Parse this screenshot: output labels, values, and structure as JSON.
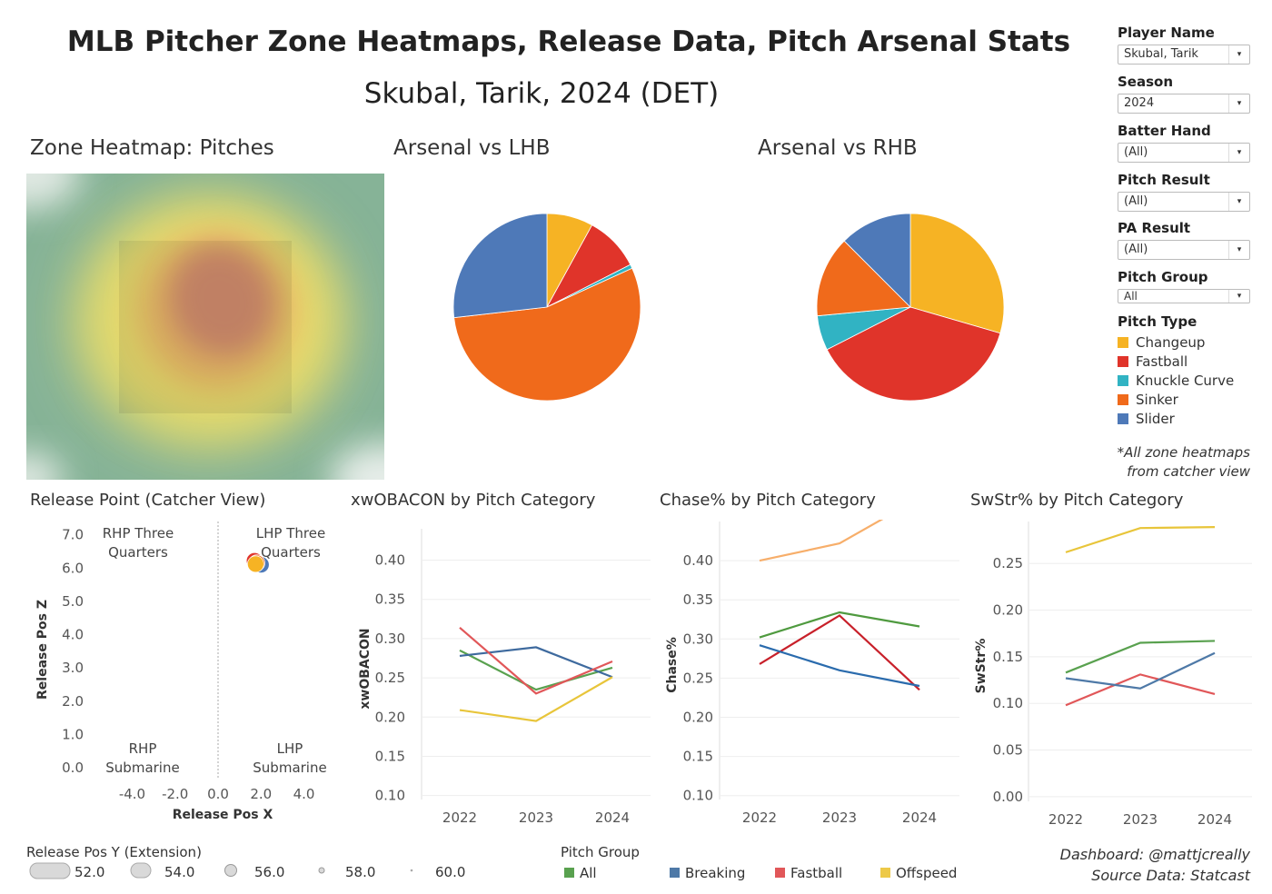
{
  "header": {
    "title": "MLB Pitcher Zone Heatmaps, Release Data, Pitch Arsenal Stats",
    "subtitle": "Skubal, Tarik, 2024 (DET)"
  },
  "filters": [
    {
      "label": "Player Name",
      "value": "Skubal, Tarik"
    },
    {
      "label": "Season",
      "value": "2024"
    },
    {
      "label": "Batter Hand",
      "value": "(All)"
    },
    {
      "label": "Pitch Result",
      "value": "(All)"
    },
    {
      "label": "PA Result",
      "value": "(All)"
    },
    {
      "label": "Pitch Group",
      "value": "All"
    }
  ],
  "pitch_type_legend": {
    "title": "Pitch Type",
    "items": [
      {
        "name": "Changeup",
        "color": "#f6b324"
      },
      {
        "name": "Fastball",
        "color": "#e0342a"
      },
      {
        "name": "Knuckle Curve",
        "color": "#31b3c3"
      },
      {
        "name": "Sinker",
        "color": "#f06a1b"
      },
      {
        "name": "Slider",
        "color": "#4e79b8"
      }
    ]
  },
  "notes": {
    "catcher_line1": "*All zone heatmaps",
    "catcher_line2": "from catcher view",
    "credit_line1": "Dashboard: @mattjcreally",
    "credit_line2": "Source Data: Statcast"
  },
  "heatmap": {
    "title": "Zone Heatmap: Pitches"
  },
  "chart_data": [
    {
      "type": "pie",
      "title": "Arsenal vs LHB",
      "slices": [
        {
          "label": "Changeup",
          "value": 8,
          "color": "#f6b324"
        },
        {
          "label": "Fastball",
          "value": 9.5,
          "color": "#e0342a"
        },
        {
          "label": "Knuckle Curve",
          "value": 0.7,
          "color": "#31b3c3"
        },
        {
          "label": "Sinker",
          "value": 55,
          "color": "#f06a1b"
        },
        {
          "label": "Slider",
          "value": 26.8,
          "color": "#4e79b8"
        }
      ]
    },
    {
      "type": "pie",
      "title": "Arsenal vs RHB",
      "slices": [
        {
          "label": "Changeup",
          "value": 29.5,
          "color": "#f6b324"
        },
        {
          "label": "Fastball",
          "value": 38,
          "color": "#e0342a"
        },
        {
          "label": "Knuckle Curve",
          "value": 6,
          "color": "#31b3c3"
        },
        {
          "label": "Sinker",
          "value": 14,
          "color": "#f06a1b"
        },
        {
          "label": "Slider",
          "value": 12.5,
          "color": "#4e79b8"
        }
      ]
    },
    {
      "type": "scatter",
      "title": "Release Point (Catcher View)",
      "xlabel": "Release Pos X",
      "ylabel": "Release Pos Z",
      "xlim": [
        -5.5,
        5.5
      ],
      "ylim": [
        -0.3,
        7.4
      ],
      "xticks": [
        "-4.0",
        "-2.0",
        "0.0",
        "2.0",
        "4.0"
      ],
      "yticks": [
        "0.0",
        "1.0",
        "2.0",
        "3.0",
        "4.0",
        "5.0",
        "6.0",
        "7.0"
      ],
      "quadrant_labels": [
        {
          "line1": "RHP Three",
          "line2": "Quarters"
        },
        {
          "line1": "LHP Three",
          "line2": "Quarters"
        },
        {
          "line1": "RHP",
          "line2": "Submarine"
        },
        {
          "line1": "LHP",
          "line2": "Submarine"
        }
      ],
      "points": [
        {
          "x": 2.0,
          "z": 6.1,
          "type": "Slider",
          "color": "#4e79b8"
        },
        {
          "x": 1.7,
          "z": 6.22,
          "type": "Fastball",
          "color": "#e0342a"
        },
        {
          "x": 1.8,
          "z": 6.15,
          "type": "Sinker",
          "color": "#f06a1b"
        },
        {
          "x": 1.75,
          "z": 6.12,
          "type": "Changeup",
          "color": "#f6b324"
        }
      ]
    },
    {
      "type": "line",
      "title": "xwOBACON by Pitch Category",
      "ylabel": "xwOBACON",
      "x": [
        "2022",
        "2023",
        "2024"
      ],
      "ylim": [
        0.095,
        0.44
      ],
      "yticks": [
        "0.10",
        "0.15",
        "0.20",
        "0.25",
        "0.30",
        "0.35",
        "0.40"
      ],
      "series": [
        {
          "name": "All",
          "color": "#59a14f",
          "values": [
            0.285,
            0.235,
            0.263
          ]
        },
        {
          "name": "Breaking",
          "color": "#3e6a9e",
          "values": [
            0.278,
            0.289,
            0.251
          ]
        },
        {
          "name": "Fastball",
          "color": "#e15759",
          "values": [
            0.314,
            0.23,
            0.271
          ]
        },
        {
          "name": "Offspeed",
          "color": "#e8c53a",
          "values": [
            0.209,
            0.195,
            0.251
          ]
        }
      ]
    },
    {
      "type": "line",
      "title": "Chase% by Pitch Category",
      "ylabel": "Chase%",
      "x": [
        "2022",
        "2023",
        "2024"
      ],
      "ylim": [
        0.095,
        0.45
      ],
      "yticks": [
        "0.10",
        "0.15",
        "0.20",
        "0.25",
        "0.30",
        "0.35",
        "0.40"
      ],
      "series": [
        {
          "name": "Offspeed",
          "color": "#f7ae6a",
          "values": [
            0.4,
            0.422,
            0.48
          ]
        },
        {
          "name": "All",
          "color": "#4f9a3f",
          "values": [
            0.302,
            0.334,
            0.316
          ]
        },
        {
          "name": "Fastball",
          "color": "#c8202a",
          "values": [
            0.268,
            0.33,
            0.235
          ]
        },
        {
          "name": "Breaking",
          "color": "#2a6bad",
          "values": [
            0.292,
            0.26,
            0.24
          ]
        }
      ]
    },
    {
      "type": "line",
      "title": "SwStr% by Pitch Category",
      "ylabel": "SwStr%",
      "x": [
        "2022",
        "2023",
        "2024"
      ],
      "ylim": [
        -0.005,
        0.295
      ],
      "yticks": [
        "0.00",
        "0.05",
        "0.10",
        "0.15",
        "0.20",
        "0.25"
      ],
      "series": [
        {
          "name": "Offspeed",
          "color": "#e8c53a",
          "values": [
            0.262,
            0.288,
            0.289
          ]
        },
        {
          "name": "All",
          "color": "#59a14f",
          "values": [
            0.133,
            0.165,
            0.167
          ]
        },
        {
          "name": "Fastball",
          "color": "#e15759",
          "values": [
            0.098,
            0.131,
            0.11
          ]
        },
        {
          "name": "Breaking",
          "color": "#4e79a7",
          "values": [
            0.127,
            0.116,
            0.154
          ]
        }
      ]
    }
  ],
  "size_legend": {
    "title": "Release Pos Y (Extension)",
    "items": [
      "52.0",
      "54.0",
      "56.0",
      "58.0",
      "60.0"
    ]
  },
  "pitch_group_legend": {
    "title": "Pitch Group",
    "items": [
      {
        "name": "All",
        "color": "#59a14f"
      },
      {
        "name": "Breaking",
        "color": "#4e79a7"
      },
      {
        "name": "Fastball",
        "color": "#e15759"
      },
      {
        "name": "Offspeed",
        "color": "#edc948"
      }
    ]
  }
}
